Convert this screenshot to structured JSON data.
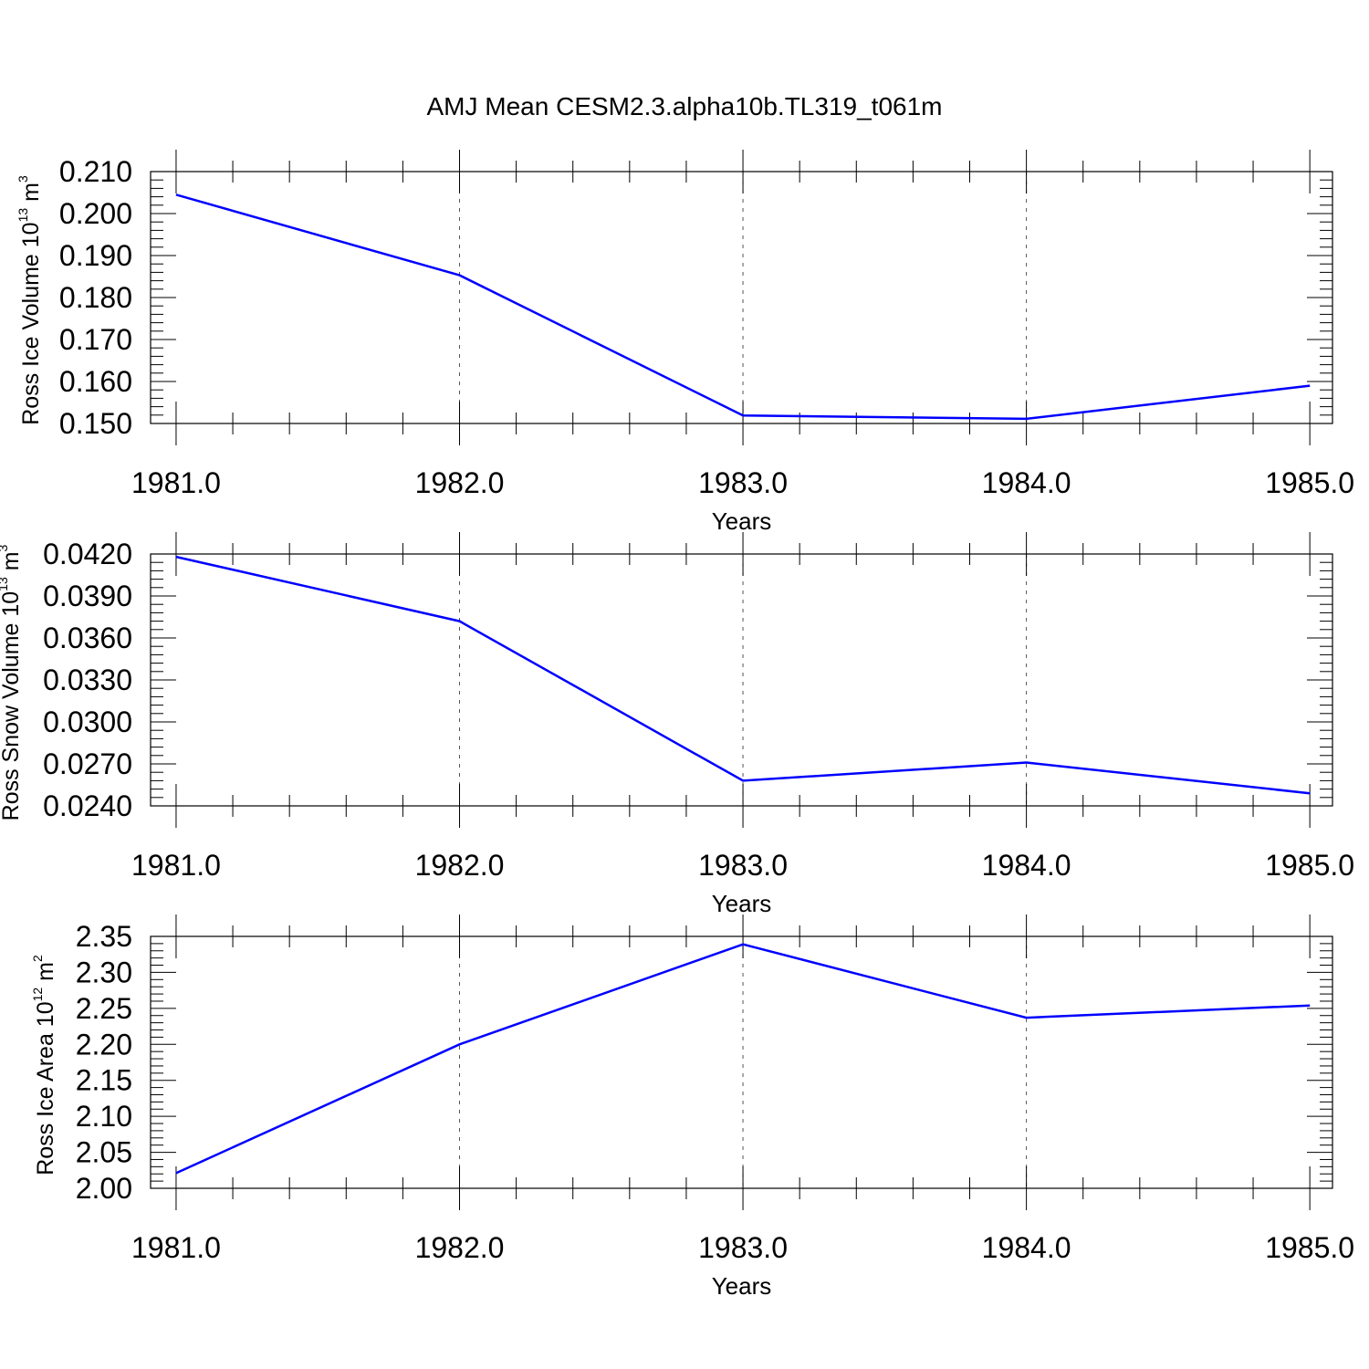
{
  "chart_data": [
    {
      "type": "line",
      "title": "AMJ Mean CESM2.3.alpha10b.TL319_t061m",
      "xlabel": "Years",
      "ylabel": "Ross Ice Volume 10",
      "ylabel_exp": "13",
      "ylabel_unit": " m",
      "ylabel_unit_exp": "3",
      "x": [
        1981.0,
        1982.0,
        1983.0,
        1984.0,
        1985.0
      ],
      "values": [
        0.2045,
        0.1853,
        0.1519,
        0.1511,
        0.159
      ],
      "xlim": [
        1980.91,
        1985.08
      ],
      "ylim": [
        0.15,
        0.21
      ],
      "xticks": [
        "1981.0",
        "1982.0",
        "1983.0",
        "1984.0",
        "1985.0"
      ],
      "yticks": [
        "0.150",
        "0.160",
        "0.170",
        "0.180",
        "0.190",
        "0.200",
        "0.210"
      ],
      "color": "#0000ff",
      "grid": "x-dashed"
    },
    {
      "type": "line",
      "xlabel": "Years",
      "ylabel": "Ross Snow Volume 10",
      "ylabel_exp": "13",
      "ylabel_unit": " m",
      "ylabel_unit_exp": "3",
      "x": [
        1981.0,
        1982.0,
        1983.0,
        1984.0,
        1985.0
      ],
      "values": [
        0.0418,
        0.0372,
        0.0258,
        0.0271,
        0.0249
      ],
      "xlim": [
        1980.91,
        1985.08
      ],
      "ylim": [
        0.024,
        0.042
      ],
      "xticks": [
        "1981.0",
        "1982.0",
        "1983.0",
        "1984.0",
        "1985.0"
      ],
      "yticks": [
        "0.0240",
        "0.0270",
        "0.0300",
        "0.0330",
        "0.0360",
        "0.0390",
        "0.0420"
      ],
      "color": "#0000ff",
      "grid": "x-dashed"
    },
    {
      "type": "line",
      "xlabel": "Years",
      "ylabel": "Ross Ice Area 10",
      "ylabel_exp": "12",
      "ylabel_unit": " m",
      "ylabel_unit_exp": "2",
      "x": [
        1981.0,
        1982.0,
        1983.0,
        1984.0,
        1985.0
      ],
      "values": [
        2.021,
        2.2,
        2.339,
        2.237,
        2.254
      ],
      "xlim": [
        1980.91,
        1985.08
      ],
      "ylim": [
        2.0,
        2.35
      ],
      "xticks": [
        "1981.0",
        "1982.0",
        "1983.0",
        "1984.0",
        "1985.0"
      ],
      "yticks": [
        "2.00",
        "2.05",
        "2.10",
        "2.15",
        "2.20",
        "2.25",
        "2.30",
        "2.35"
      ],
      "color": "#0000ff",
      "grid": "x-dashed"
    }
  ]
}
